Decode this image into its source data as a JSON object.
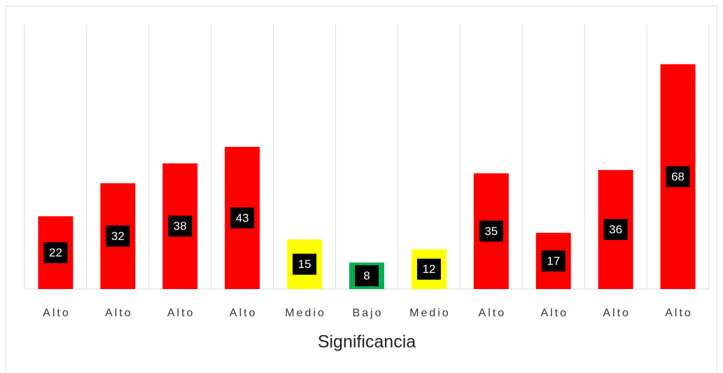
{
  "chart_data": {
    "type": "bar",
    "x_label": "Significancia",
    "categories": [
      "Alto",
      "Alto",
      "Alto",
      "Alto",
      "Medio",
      "Bajo",
      "Medio",
      "Alto",
      "Alto",
      "Alto",
      "Alto"
    ],
    "values": [
      22,
      32,
      38,
      43,
      15,
      8,
      12,
      35,
      17,
      36,
      68
    ],
    "colors": [
      "#ff0000",
      "#ff0000",
      "#ff0000",
      "#ff0000",
      "#ffff00",
      "#00b050",
      "#ffff00",
      "#ff0000",
      "#ff0000",
      "#ff0000",
      "#ff0000"
    ],
    "ylim": [
      0,
      80
    ]
  }
}
